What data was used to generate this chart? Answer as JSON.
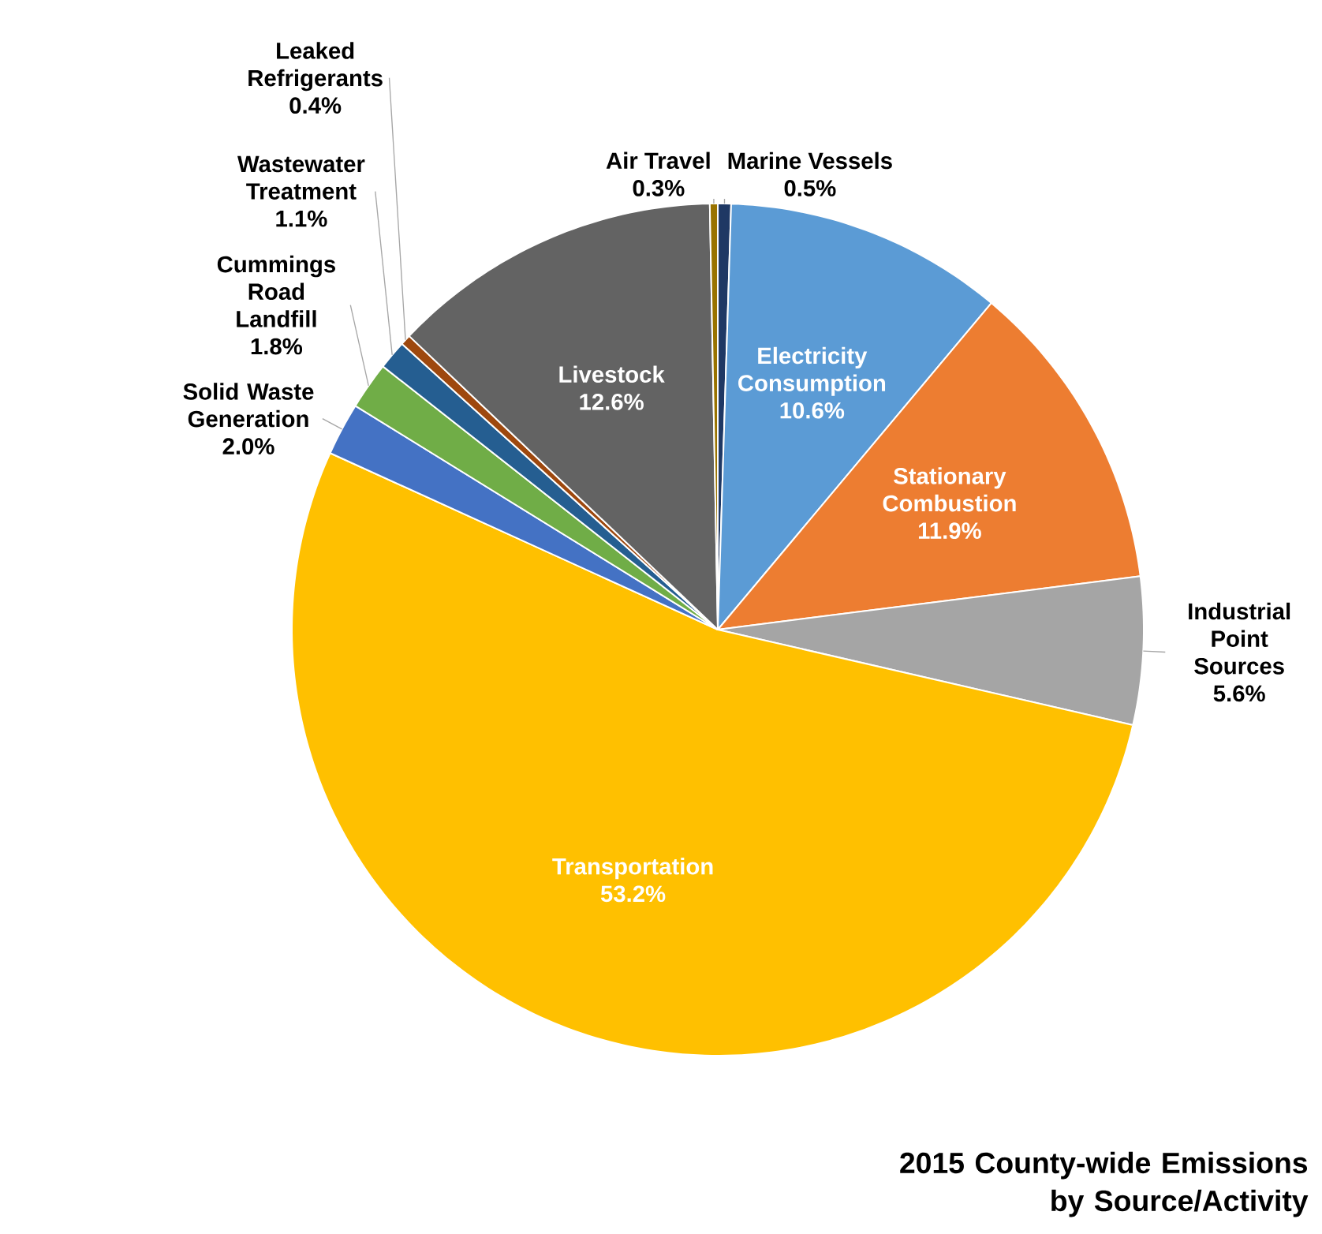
{
  "chart_data": {
    "type": "pie",
    "title": "2015 County-wide Emissions by Source/Activity",
    "categories": [
      "Marine Vessels",
      "Electricity Consumption",
      "Stationary Combustion",
      "Industrial Point Sources",
      "Transportation",
      "Solid Waste Generation",
      "Cummings Road Landfill",
      "Wastewater Treatment",
      "Leaked Refrigerants",
      "Livestock",
      "Air Travel"
    ],
    "values": [
      0.5,
      10.6,
      11.9,
      5.6,
      53.2,
      2.0,
      1.8,
      1.1,
      0.4,
      12.6,
      0.3
    ],
    "value_labels": [
      "0.5%",
      "10.6%",
      "11.9%",
      "5.6%",
      "53.2%",
      "2.0%",
      "1.8%",
      "1.1%",
      "0.4%",
      "12.6%",
      "0.3%"
    ],
    "colors": [
      "#1f3864",
      "#5b9bd5",
      "#ed7d31",
      "#a5a5a5",
      "#ffc000",
      "#4472c4",
      "#70ad47",
      "#255e91",
      "#9e480e",
      "#636363",
      "#997300"
    ]
  }
}
